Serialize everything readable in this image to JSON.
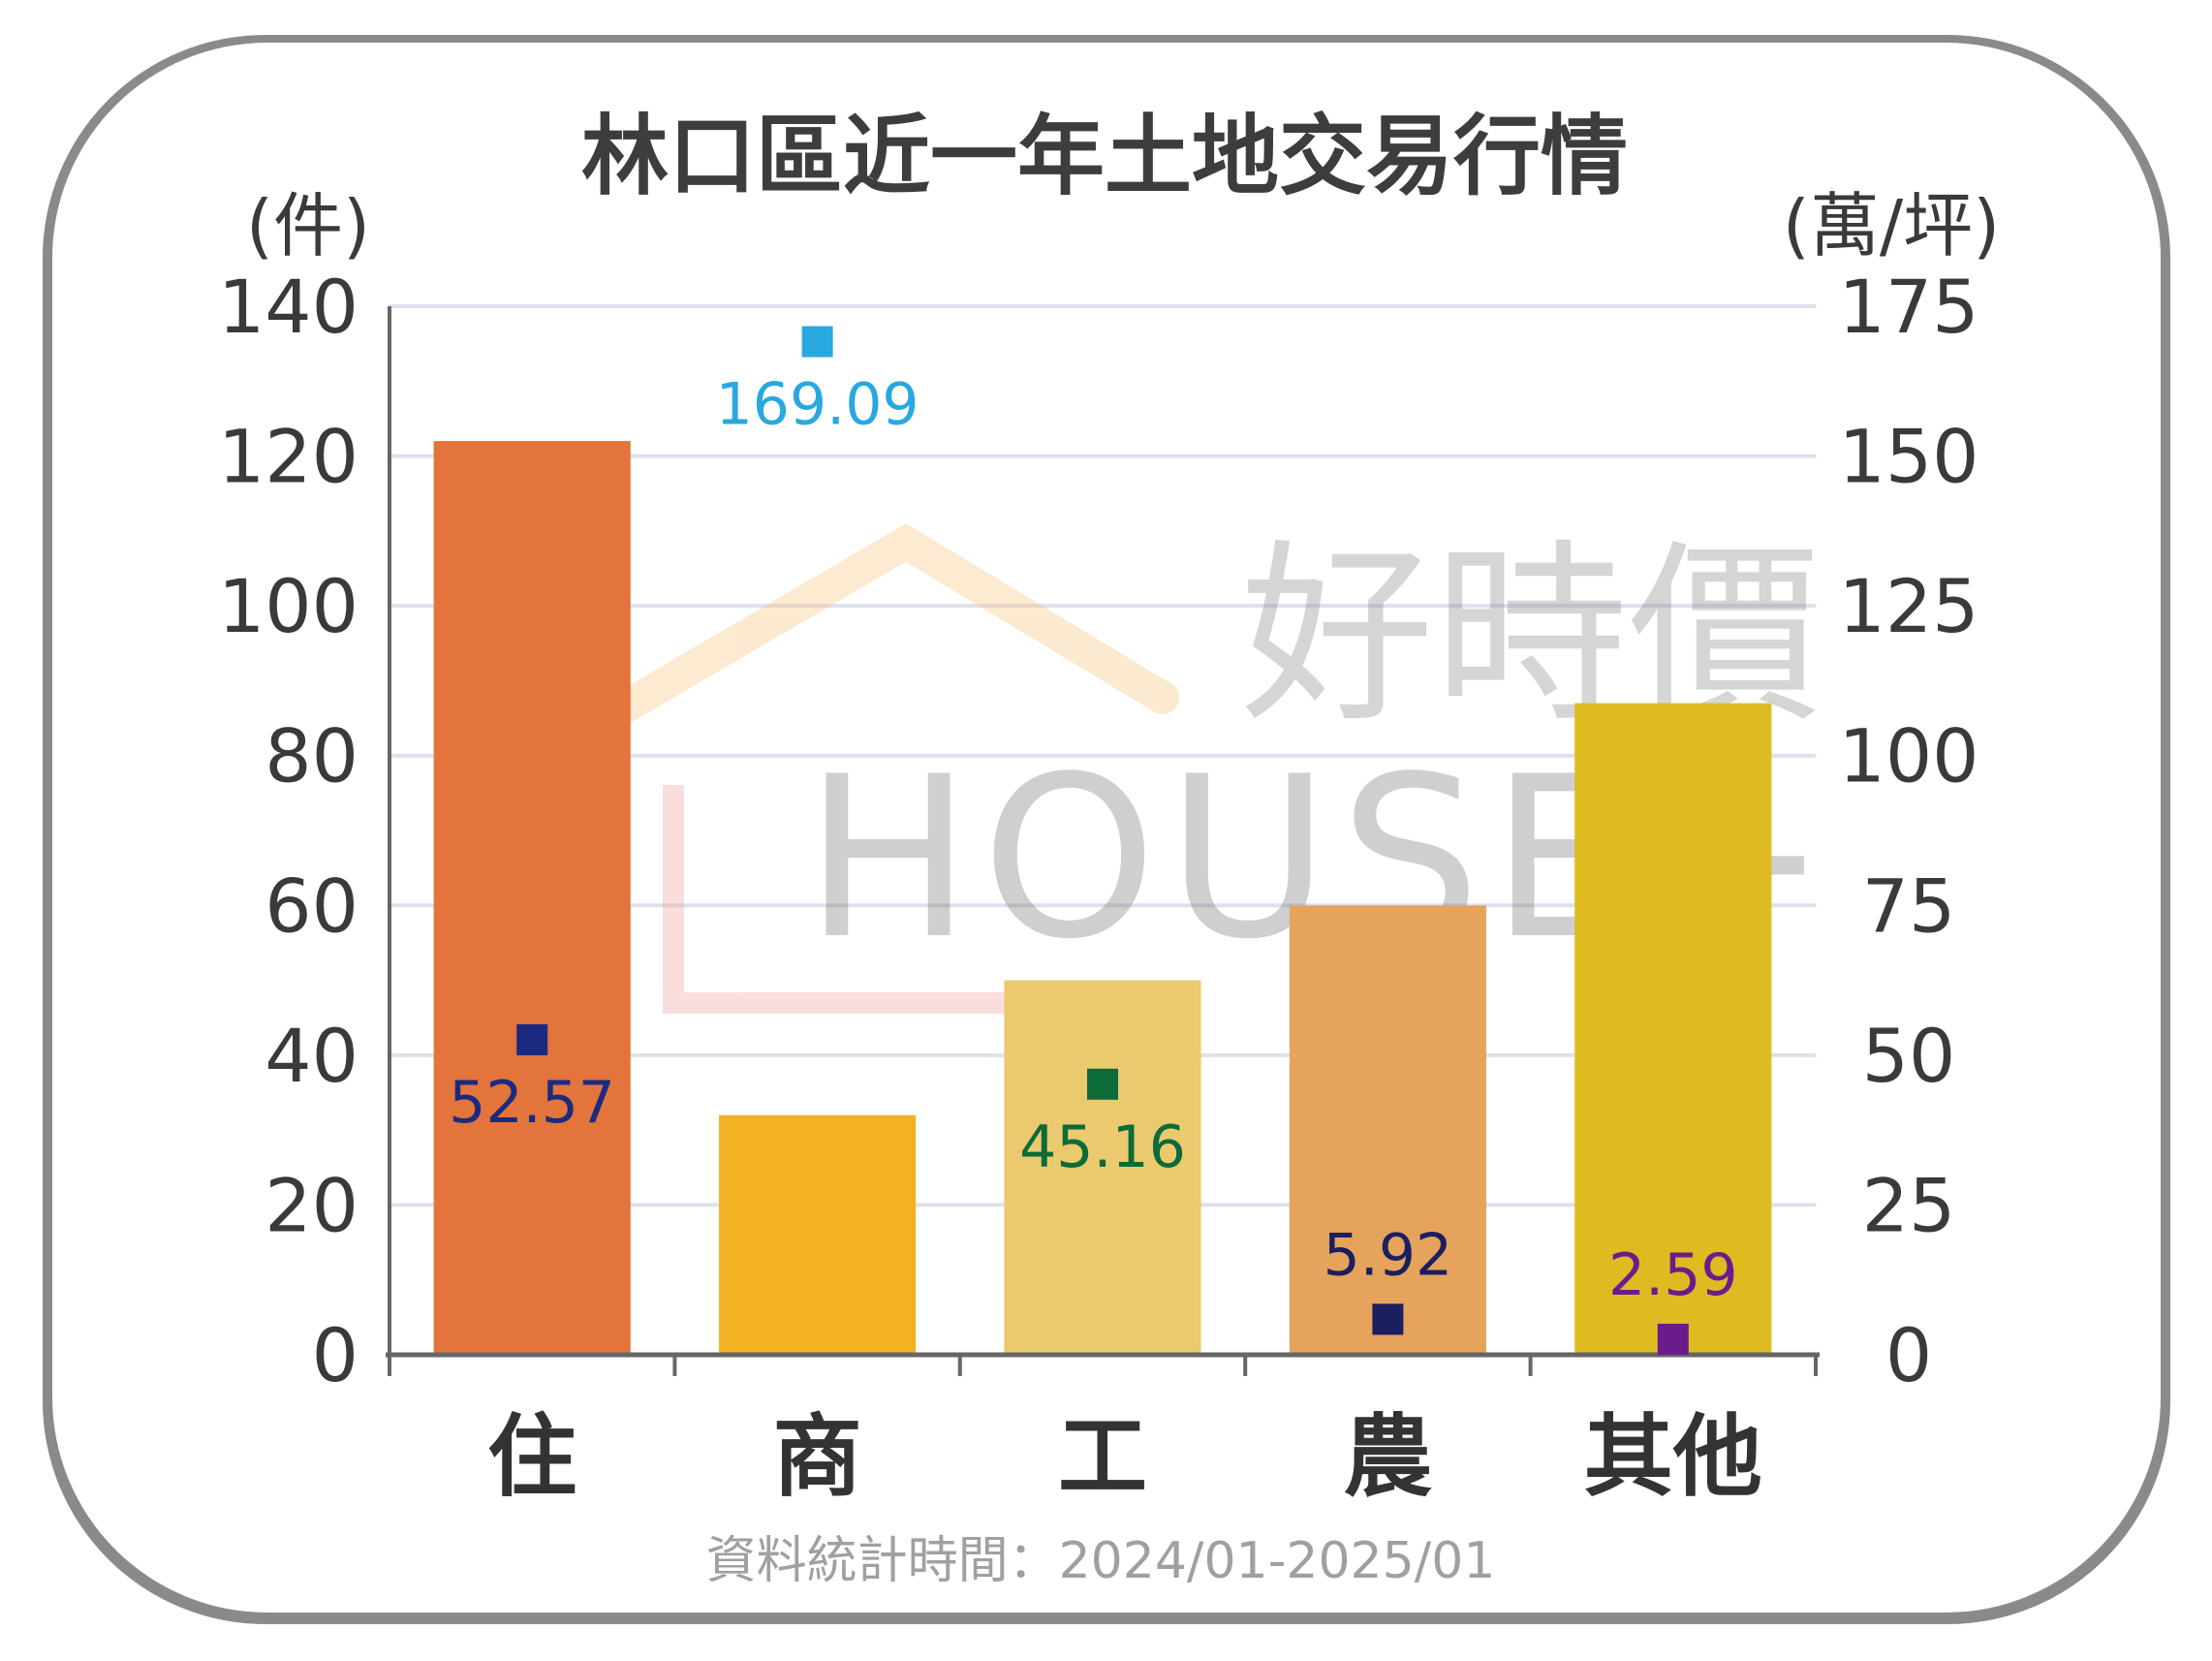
{
  "chart_data": {
    "type": "bar",
    "title": "林口區近一年土地交易行情",
    "categories": [
      "住",
      "商",
      "工",
      "農",
      "其他"
    ],
    "series": [
      {
        "axis": "left",
        "type": "bar",
        "values": [
          122,
          32,
          50,
          60,
          87
        ],
        "colors": [
          "#e2743c",
          "#f2b224",
          "#ebc96f",
          "#e6a35c",
          "#debb20"
        ]
      },
      {
        "axis": "right",
        "type": "scatter",
        "values": [
          52.57,
          169.09,
          45.16,
          5.92,
          2.59
        ],
        "labels": [
          "52.57",
          "169.09",
          "45.16",
          "5.92",
          "2.59"
        ],
        "colors": [
          "#1b2a80",
          "#29a8e0",
          "#0c6b38",
          "#1b1f60",
          "#6b1c8c"
        ]
      }
    ],
    "ylabel_left": "(件)",
    "ylabel_right": "(萬/坪)",
    "ylim_left": [
      0,
      140
    ],
    "ylim_right": [
      0,
      175
    ],
    "yticks_left": [
      "0",
      "20",
      "40",
      "60",
      "80",
      "100",
      "120",
      "140"
    ],
    "yticks_right": [
      "0",
      "25",
      "50",
      "75",
      "100",
      "125",
      "150",
      "175"
    ],
    "grid": true,
    "footnote": "資料統計時間：2024/01-2025/01"
  },
  "watermark": {
    "text_cn": "好時價",
    "text_en": "HOUSE+"
  }
}
